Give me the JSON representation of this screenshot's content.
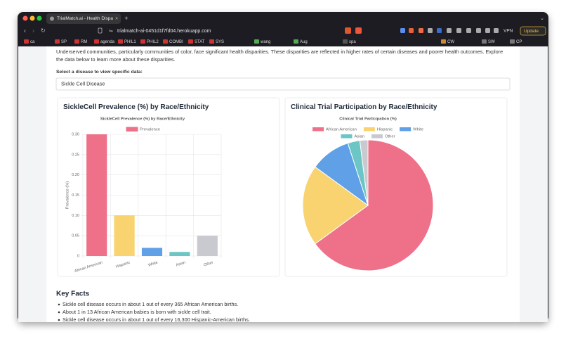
{
  "browser": {
    "tab_title": "TrialMatch.ai - Health Dispa",
    "url": "trialmatch-ai-0451d1f7fd04.herokuapp.com",
    "vpn": "VPN",
    "update": "Update",
    "bookmarks": [
      "ca",
      "SP",
      "RM",
      "agenda",
      "PHIL1",
      "PHIL2",
      "COMBI",
      "STAT",
      "SYS",
      "wang",
      "Aug",
      "spa",
      "CW",
      "SW",
      "CP"
    ]
  },
  "page": {
    "intro": "Underserved communities, particularly communities of color, face significant health disparities. These disparities are reflected in higher rates of certain diseases and poorer health outcomes. Explore",
    "intro_2": "the data below to learn more about these disparities.",
    "select_label": "Select a disease to view specific data:",
    "select_value": "Sickle Cell Disease",
    "key_facts": {
      "title": "Key Facts",
      "items": [
        "Sickle cell disease occurs in about 1 out of every 365 African American births.",
        "About 1 in 13 African American babies is born with sickle cell trait.",
        "Sickle cell disease occurs in about 1 out of every 16,300 Hispanic-American births."
      ]
    }
  },
  "chart_data": [
    {
      "type": "bar",
      "card_title": "SickleCell Prevalence (%) by Race/Ethnicity",
      "title": "SickleCell Prevalence (%) by Race/Ethnicity",
      "y_label": "Prevalence (%)",
      "categories": [
        "African American",
        "Hispanic",
        "White",
        "Asian",
        "Other"
      ],
      "series": [
        {
          "name": "Prevalence",
          "color": "#ee7089",
          "colors": [
            "#ee7089",
            "#f8d36f",
            "#5fa0e6",
            "#6cc6c5",
            "#c9cacf"
          ],
          "values": [
            0.3,
            0.1,
            0.02,
            0.01,
            0.05
          ]
        }
      ],
      "ylim": [
        0,
        0.3
      ],
      "yticks": [
        0,
        0.05,
        {
          "value": 0.1,
          "label": "0.10"
        },
        0.15,
        {
          "value": 0.2,
          "label": "0.20"
        },
        0.25,
        {
          "value": 0.3,
          "label": "0.30"
        }
      ],
      "grid": true,
      "legend": "top"
    },
    {
      "type": "pie",
      "card_title": "Clinical Trial Participation by Race/Ethnicity",
      "title": "Clinical Trial Participation (%)",
      "categories": [
        "African American",
        "Hispanic",
        "White",
        "Asian",
        "Other"
      ],
      "values": [
        65,
        20,
        10,
        3,
        2
      ],
      "colors": [
        "#ee7089",
        "#f8d36f",
        "#5fa0e6",
        "#6cc6c5",
        "#c9cacf"
      ],
      "legend": "top"
    }
  ]
}
